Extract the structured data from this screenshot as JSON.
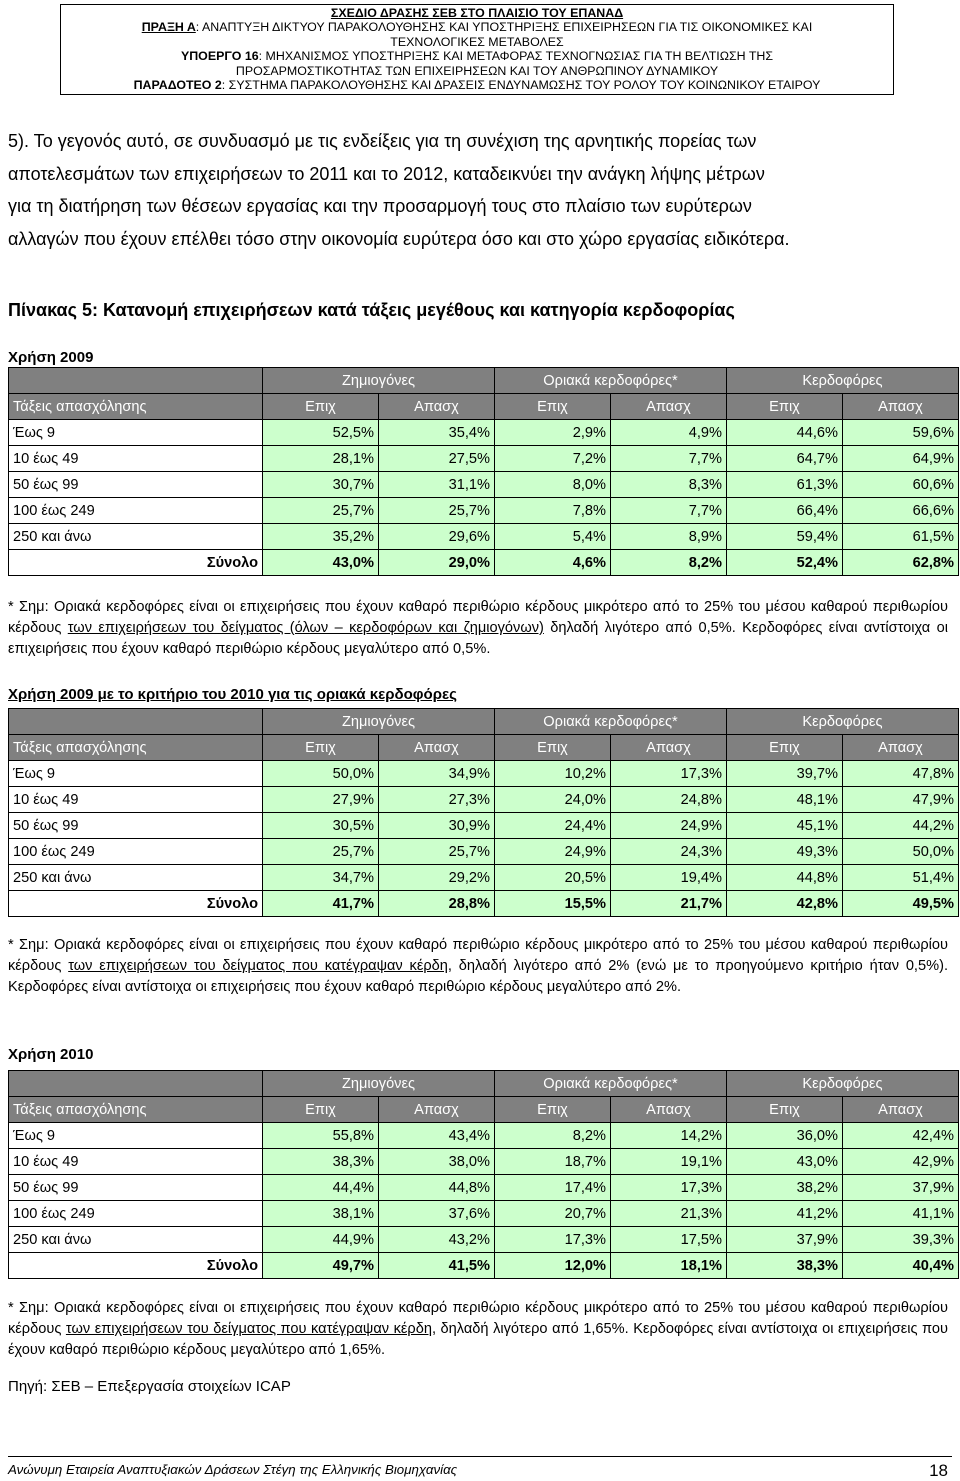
{
  "header": {
    "line1": "ΣΧΕΔΙΟ ΔΡΑΣΗΣ ΣΕΒ ΣΤΟ ΠΛΑΙΣΙΟ ΤΟΥ ΕΠΑΝΑΔ",
    "line2_label": "ΠΡΑΞΗ Α",
    "line2_text": ": ΑΝΑΠΤΥΞΗ ΔΙΚΤΥΟΥ ΠΑΡΑΚΟΛΟΥΘΗΣΗΣ ΚΑΙ ΥΠΟΣΤΗΡΙΞΗΣ ΕΠΙΧΕΙΡΗΣΕΩΝ ΓΙΑ ΤΙΣ ΟΙΚΟΝΟΜΙΚΕΣ ΚΑΙ",
    "line3": "ΤΕΧΝΟΛΟΓΙΚΕΣ ΜΕΤΑΒΟΛΕΣ",
    "line4_label": "ΥΠΟΕΡΓΟ 16",
    "line4_text": ": ΜΗΧΑΝΙΣΜΟΣ ΥΠΟΣΤΗΡΙΞΗΣ ΚΑΙ ΜΕΤΑΦΟΡΑΣ ΤΕΧΝΟΓΝΩΣΙΑΣ ΓΙΑ ΤΗ ΒΕΛΤΙΩΣΗ ΤΗΣ",
    "line5": "ΠΡΟΣΑΡΜΟΣΤΙΚΟΤΗΤΑΣ ΤΩΝ ΕΠΙΧΕΙΡΗΣΕΩΝ ΚΑΙ ΤΟΥ ΑΝΘΡΩΠΙΝΟΥ ΔΥΝΑΜΙΚΟΥ",
    "line6_label": "ΠΑΡΑΔΟΤΕΟ 2",
    "line6_text": ": ΣΥΣΤΗΜΑ ΠΑΡΑΚΟΛΟΥΘΗΣΗΣ ΚΑΙ ΔΡΑΣΕΙΣ ΕΝΔΥΝΑΜΩΣΗΣ ΤΟΥ ΡΟΛΟΥ ΤΟΥ ΚΟΙΝΩΝΙΚΟΥ ΕΤΑΙΡΟΥ"
  },
  "intro_lines": [
    "5). Το γεγονός αυτό, σε συνδυασμό με τις ενδείξεις για τη συνέχιση της αρνητικής πορείας των",
    "αποτελεσμάτων των επιχειρήσεων το 2011 και το 2012, καταδεικνύει την ανάγκη λήψης μέτρων",
    "για τη διατήρηση των θέσεων εργασίας και την προσαρμογή τους στο πλαίσιο των ευρύτερων",
    "αλλαγών που έχουν επέλθει τόσο στην οικονομία ευρύτερα όσο και στο χώρο εργασίας ειδικότερα."
  ],
  "table_title": "Πίνακας 5: Κατανομή επιχειρήσεων κατά τάξεις μεγέθους και κατηγορία κερδοφορίας",
  "column_groups": [
    "Ζημιογόνες",
    "Οριακά κερδοφόρες*",
    "Κερδοφόρες"
  ],
  "row_header": "Τάξεις απασχόλησης",
  "subcols": [
    "Επιχ",
    "Απασχ",
    "Επιχ",
    "Απασχ",
    "Επιχ",
    "Απασχ"
  ],
  "tables": [
    {
      "caption": "Χρήση 2009",
      "rows": [
        {
          "label": "Έως 9",
          "values": [
            "52,5%",
            "35,4%",
            "2,9%",
            "4,9%",
            "44,6%",
            "59,6%"
          ]
        },
        {
          "label": "10 έως 49",
          "values": [
            "28,1%",
            "27,5%",
            "7,2%",
            "7,7%",
            "64,7%",
            "64,9%"
          ]
        },
        {
          "label": "50 έως 99",
          "values": [
            "30,7%",
            "31,1%",
            "8,0%",
            "8,3%",
            "61,3%",
            "60,6%"
          ]
        },
        {
          "label": "100 έως 249",
          "values": [
            "25,7%",
            "25,7%",
            "7,8%",
            "7,7%",
            "66,4%",
            "66,6%"
          ]
        },
        {
          "label": "250 και άνω",
          "values": [
            "35,2%",
            "29,6%",
            "5,4%",
            "8,9%",
            "59,4%",
            "61,5%"
          ]
        }
      ],
      "total": {
        "label": "Σύνολο",
        "values": [
          "43,0%",
          "29,0%",
          "4,6%",
          "8,2%",
          "52,4%",
          "62,8%"
        ]
      },
      "note": {
        "a": "* Σημ: Οριακά κερδοφόρες είναι οι επιχειρήσεις που έχουν καθαρό περιθώριο κέρδους μικρότερο από το 25% του μέσου καθαρού περιθωρίου κέρδους ",
        "u": "των επιχειρήσεων του δείγματος (όλων – κερδοφόρων και ζημιογόνων)",
        "b": " δηλαδή λιγότερο από 0,5%. Κερδοφόρες είναι αντίστοιχα οι επιχειρήσεις που έχουν καθαρό περιθώριο κέρδους μεγαλύτερο από 0,5%."
      }
    },
    {
      "caption": "Χρήση 2009 με το κριτήριο του 2010 για τις οριακά κερδοφόρες",
      "rows": [
        {
          "label": "Έως 9",
          "values": [
            "50,0%",
            "34,9%",
            "10,2%",
            "17,3%",
            "39,7%",
            "47,8%"
          ]
        },
        {
          "label": "10 έως 49",
          "values": [
            "27,9%",
            "27,3%",
            "24,0%",
            "24,8%",
            "48,1%",
            "47,9%"
          ]
        },
        {
          "label": "50 έως 99",
          "values": [
            "30,5%",
            "30,9%",
            "24,4%",
            "24,9%",
            "45,1%",
            "44,2%"
          ]
        },
        {
          "label": "100 έως 249",
          "values": [
            "25,7%",
            "25,7%",
            "24,9%",
            "24,3%",
            "49,3%",
            "50,0%"
          ]
        },
        {
          "label": "250 και άνω",
          "values": [
            "34,7%",
            "29,2%",
            "20,5%",
            "19,4%",
            "44,8%",
            "51,4%"
          ]
        }
      ],
      "total": {
        "label": "Σύνολο",
        "values": [
          "41,7%",
          "28,8%",
          "15,5%",
          "21,7%",
          "42,8%",
          "49,5%"
        ]
      },
      "note": {
        "a": "* Σημ: Οριακά κερδοφόρες είναι οι επιχειρήσεις που έχουν καθαρό περιθώριο κέρδους μικρότερο από το 25% του μέσου καθαρού περιθωρίου κέρδους ",
        "u": "των επιχειρήσεων του δείγματος που κατέγραψαν κέρδη",
        "b": ", δηλαδή λιγότερο από 2% (ενώ με το προηγούμενο κριτήριο ήταν 0,5%). Κερδοφόρες είναι αντίστοιχα οι επιχειρήσεις που έχουν καθαρό περιθώριο κέρδους μεγαλύτερο από 2%."
      }
    },
    {
      "caption": "Χρήση 2010",
      "rows": [
        {
          "label": "Έως 9",
          "values": [
            "55,8%",
            "43,4%",
            "8,2%",
            "14,2%",
            "36,0%",
            "42,4%"
          ]
        },
        {
          "label": "10 έως 49",
          "values": [
            "38,3%",
            "38,0%",
            "18,7%",
            "19,1%",
            "43,0%",
            "42,9%"
          ]
        },
        {
          "label": "50 έως 99",
          "values": [
            "44,4%",
            "44,8%",
            "17,4%",
            "17,3%",
            "38,2%",
            "37,9%"
          ]
        },
        {
          "label": "100 έως 249",
          "values": [
            "38,1%",
            "37,6%",
            "20,7%",
            "21,3%",
            "41,2%",
            "41,1%"
          ]
        },
        {
          "label": "250 και άνω",
          "values": [
            "44,9%",
            "43,2%",
            "17,3%",
            "17,5%",
            "37,9%",
            "39,3%"
          ]
        }
      ],
      "total": {
        "label": "Σύνολο",
        "values": [
          "49,7%",
          "41,5%",
          "12,0%",
          "18,1%",
          "38,3%",
          "40,4%"
        ]
      },
      "note": {
        "a": "* Σημ: Οριακά κερδοφόρες είναι οι επιχειρήσεις που έχουν καθαρό περιθώριο κέρδους μικρότερο από το 25% του μέσου καθαρού περιθωρίου κέρδους ",
        "u": "των επιχειρήσεων του δείγματος που κατέγραψαν κέρδη",
        "b": ", δηλαδή λιγότερο από 1,65%. Κερδοφόρες είναι αντίστοιχα οι επιχειρήσεις που έχουν καθαρό περιθώριο κέρδους μεγαλύτερο από 1,65%."
      }
    }
  ],
  "source": "Πηγή: ΣΕΒ – Επεξεργασία στοιχείων ICAP",
  "footer": "Ανώνυμη Εταιρεία Αναπτυξιακών Δράσεων Στέγη της Ελληνικής Βιομηχανίας",
  "page_number": "18"
}
